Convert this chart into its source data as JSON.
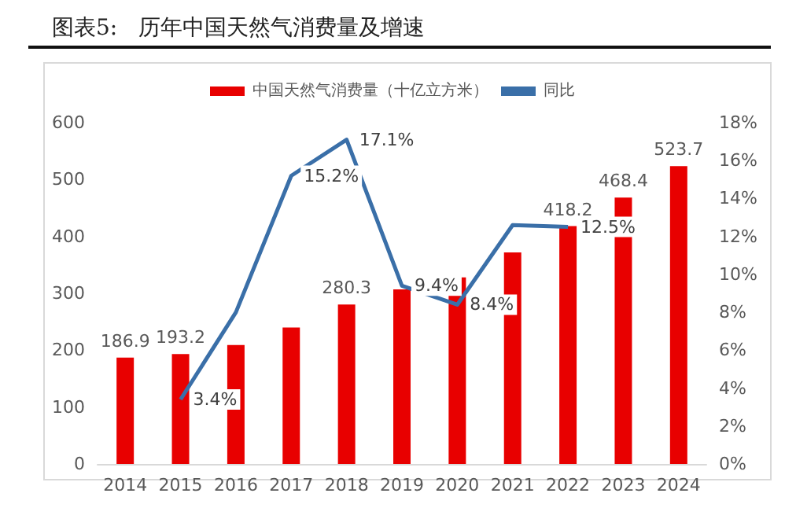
{
  "chart_data": {
    "type": "bar",
    "title": "图表5:   历年中国天然气消费量及增速",
    "categories": [
      "2014",
      "2015",
      "2016",
      "2017",
      "2018",
      "2019",
      "2020",
      "2021",
      "2022",
      "2023",
      "2024"
    ],
    "series": [
      {
        "name": "中国天然气消费量（十亿立方米）",
        "color": "#e80000",
        "values": [
          186.9,
          193.2,
          209,
          240,
          280.3,
          307,
          328,
          372,
          418.2,
          468.4,
          523.7
        ],
        "value_labels": [
          "186.9",
          "193.2",
          null,
          null,
          "280.3",
          null,
          null,
          null,
          "418.2",
          "468.4",
          "523.7"
        ]
      },
      {
        "name": "同比",
        "type": "line",
        "axis": "y2",
        "color": "#3a6fa8",
        "values": [
          null,
          3.4,
          8.0,
          15.2,
          17.1,
          9.4,
          8.4,
          12.6,
          12.5,
          null,
          null
        ],
        "value_labels": [
          null,
          "3.4%",
          null,
          "15.2%",
          "17.1%",
          "9.4%",
          "8.4%",
          null,
          "12.5%",
          null,
          null
        ]
      }
    ],
    "ylim": [
      0,
      600
    ],
    "yticks": [
      0,
      100,
      200,
      300,
      400,
      500,
      600
    ],
    "y2lim": [
      0,
      18
    ],
    "y2ticks": [
      {
        "value": 0,
        "label": "0%"
      },
      {
        "value": 2,
        "label": "2%"
      },
      {
        "value": 4,
        "label": "4%"
      },
      {
        "value": 6,
        "label": "6%"
      },
      {
        "value": 8,
        "label": "8%"
      },
      {
        "value": 10,
        "label": "10%"
      },
      {
        "value": 12,
        "label": "12%"
      },
      {
        "value": 14,
        "label": "14%"
      },
      {
        "value": 16,
        "label": "16%"
      },
      {
        "value": 18,
        "label": "18%"
      }
    ],
    "legend": "top",
    "grid": false,
    "marker": "none"
  }
}
